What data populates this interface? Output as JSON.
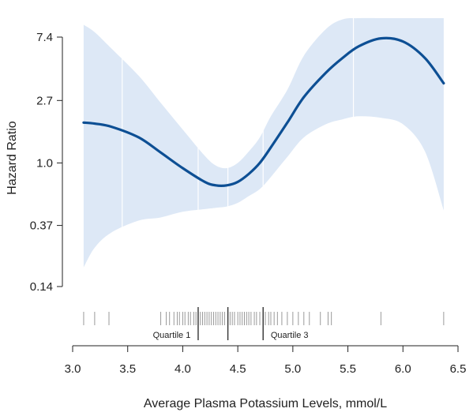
{
  "chart_data": {
    "type": "line",
    "title": "",
    "xlabel": "Average Plasma Potassium Levels, mmol/L",
    "ylabel": "Hazard Ratio",
    "xlim": [
      3.0,
      6.5
    ],
    "ylim": [
      0.14,
      7.4
    ],
    "y_scale": "log",
    "x_ticks": [
      "3.0",
      "3.5",
      "4.0",
      "4.5",
      "5.0",
      "5.5",
      "6.0",
      "6.5"
    ],
    "y_ticks": [
      "0.14",
      "0.37",
      "1.0",
      "2.7",
      "7.4"
    ],
    "grid": false,
    "series": [
      {
        "x": [
          3.1,
          3.2,
          3.35,
          3.6,
          3.8,
          4.0,
          4.2,
          4.3,
          4.4,
          4.5,
          4.6,
          4.7,
          4.8,
          4.95,
          5.1,
          5.3,
          5.45,
          5.6,
          5.8,
          6.0,
          6.2,
          6.37
        ],
        "y": [
          1.9,
          1.87,
          1.78,
          1.5,
          1.18,
          0.92,
          0.74,
          0.7,
          0.7,
          0.74,
          0.84,
          1.0,
          1.28,
          1.9,
          2.85,
          4.2,
          5.3,
          6.4,
          7.25,
          6.9,
          5.3,
          3.55
        ],
        "lower": [
          0.19,
          0.26,
          0.33,
          0.4,
          0.42,
          0.46,
          0.48,
          0.49,
          0.5,
          0.53,
          0.59,
          0.66,
          0.8,
          1.1,
          1.5,
          1.85,
          2.0,
          2.1,
          2.05,
          1.85,
          1.2,
          0.47
        ],
        "upper": [
          9.0,
          8.0,
          6.2,
          4.0,
          2.6,
          1.7,
          1.12,
          0.96,
          0.92,
          1.0,
          1.2,
          1.5,
          2.1,
          3.2,
          5.5,
          8.4,
          9.8,
          10.0,
          10.0,
          10.0,
          10.0,
          10.0
        ]
      }
    ],
    "quartile_lines": [
      4.14,
      4.41,
      4.73
    ],
    "quartile_labels": [
      {
        "text": "Quartile 1",
        "x": 3.9
      },
      {
        "text": "Quartile 3",
        "x": 4.97
      }
    ],
    "rug": [
      3.1,
      3.2,
      3.33,
      3.8,
      3.85,
      3.88,
      3.92,
      3.95,
      3.97,
      4.0,
      4.02,
      4.05,
      4.07,
      4.1,
      4.12,
      4.14,
      4.16,
      4.18,
      4.2,
      4.22,
      4.24,
      4.26,
      4.28,
      4.3,
      4.32,
      4.34,
      4.36,
      4.38,
      4.41,
      4.43,
      4.45,
      4.47,
      4.5,
      4.52,
      4.54,
      4.56,
      4.58,
      4.6,
      4.62,
      4.65,
      4.67,
      4.7,
      4.73,
      4.75,
      4.78,
      4.8,
      4.83,
      4.86,
      4.9,
      4.95,
      5.0,
      5.05,
      5.1,
      5.15,
      5.25,
      5.32,
      5.35,
      5.8,
      6.37
    ],
    "colors": {
      "line": "#0d4f94",
      "band": "#dde8f6",
      "band_grid": "#ffffff",
      "rug": "#9a9a9a",
      "quartile": "#333333",
      "axis": "#222222"
    }
  }
}
